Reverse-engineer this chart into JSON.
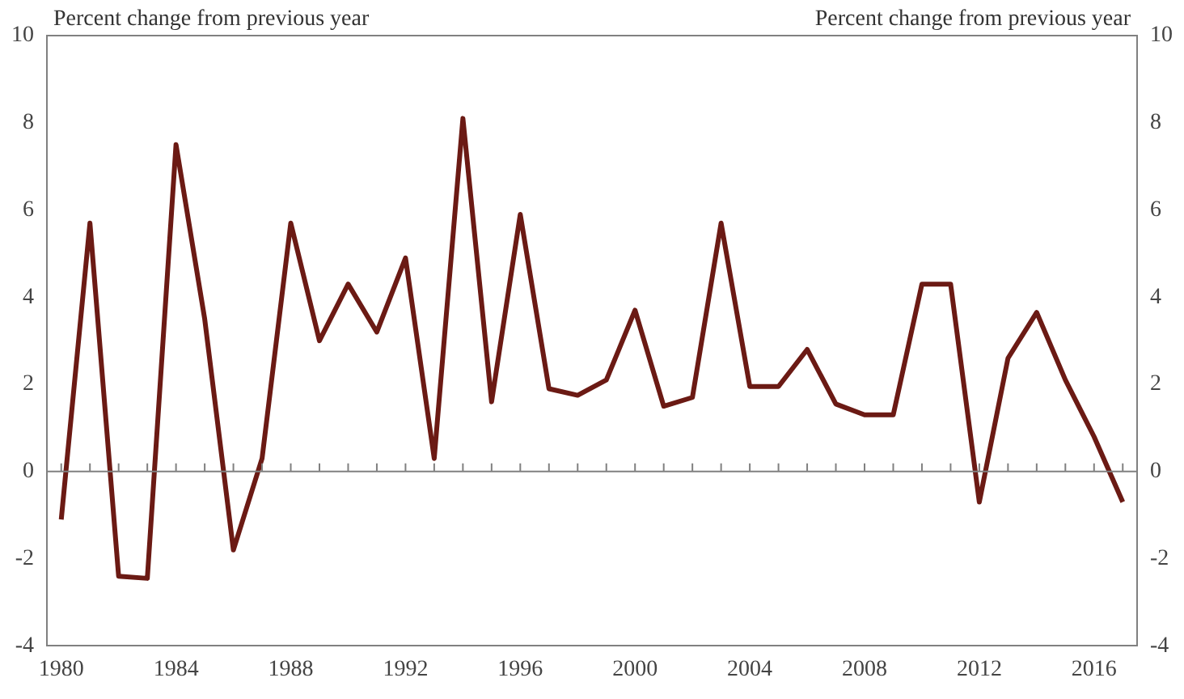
{
  "chart_data": {
    "type": "line",
    "ylabel": "Percent change from previous year",
    "y2label": "Percent change from previous year",
    "categories": [
      "1980",
      null,
      null,
      null,
      "1984",
      null,
      null,
      null,
      "1988",
      null,
      null,
      null,
      "1992",
      null,
      null,
      null,
      "1996",
      null,
      null,
      null,
      "2000",
      null,
      null,
      null,
      "2004",
      null,
      null,
      null,
      "2008",
      null,
      null,
      null,
      "2012",
      null,
      null,
      null,
      "2016",
      null
    ],
    "series": [
      {
        "color": "#6b1a14",
        "values": [
          -1.1,
          5.7,
          -2.4,
          -2.45,
          7.5,
          3.5,
          -1.8,
          0.3,
          5.7,
          3.0,
          4.3,
          3.2,
          4.9,
          0.3,
          8.1,
          1.6,
          5.9,
          1.9,
          1.75,
          2.1,
          3.7,
          1.5,
          1.7,
          5.7,
          1.95,
          1.95,
          2.8,
          1.55,
          1.3,
          1.3,
          4.3,
          4.3,
          -0.7,
          2.6,
          3.65,
          2.1,
          0.8,
          -0.7
        ]
      }
    ],
    "ylim": [
      -4,
      10
    ],
    "yticks": [
      -4,
      -2,
      0,
      2,
      4,
      6,
      8,
      10
    ],
    "y2lim": [
      -4,
      10
    ],
    "y2ticks": [
      -4,
      -2,
      0,
      2,
      4,
      6,
      8,
      10
    ],
    "ref_lines": [
      {
        "axis": "y",
        "value": 0,
        "color": "#808080"
      }
    ],
    "grid": false,
    "legend": false,
    "marker": "none",
    "line_style": "solid"
  }
}
